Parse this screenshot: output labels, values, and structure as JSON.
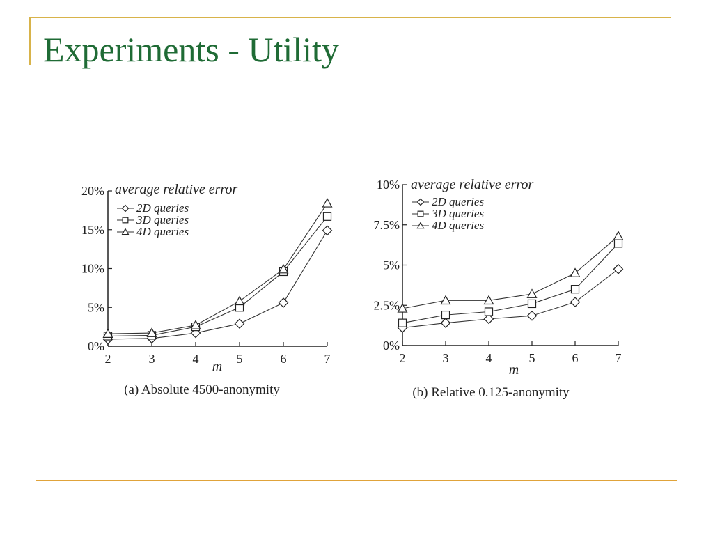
{
  "slide": {
    "title": "Experiments - Utility"
  },
  "chart_data": [
    {
      "type": "line",
      "title": "average relative error",
      "caption": "(a) Absolute 4500-anonymity",
      "xlabel": "m",
      "ylabel": "",
      "x": [
        2,
        3,
        4,
        5,
        6,
        7
      ],
      "xlim": [
        2,
        7
      ],
      "ylim": [
        0,
        20
      ],
      "yticks": [
        0,
        5,
        10,
        15,
        20
      ],
      "ytick_labels": [
        "0%",
        "5%",
        "10%",
        "15%",
        "20%"
      ],
      "xtick_labels": [
        "2",
        "3",
        "4",
        "5",
        "6",
        "7"
      ],
      "grid": false,
      "legend_placement": "top-left",
      "series": [
        {
          "name": "2D queries",
          "marker": "diamond",
          "values": [
            0.9,
            1.0,
            1.7,
            2.9,
            5.6,
            14.9
          ]
        },
        {
          "name": "3D queries",
          "marker": "square",
          "values": [
            1.3,
            1.4,
            2.5,
            5.0,
            9.6,
            16.7
          ]
        },
        {
          "name": "4D queries",
          "marker": "triangle",
          "values": [
            1.6,
            1.7,
            2.7,
            5.8,
            9.9,
            18.4
          ]
        }
      ]
    },
    {
      "type": "line",
      "title": "average relative error",
      "caption": "(b) Relative 0.125-anonymity",
      "xlabel": "m",
      "ylabel": "",
      "x": [
        2,
        3,
        4,
        5,
        6,
        7
      ],
      "xlim": [
        2,
        7
      ],
      "ylim": [
        0,
        10
      ],
      "yticks": [
        0,
        2.5,
        5,
        7.5,
        10
      ],
      "ytick_labels": [
        "0%",
        "2.5%",
        "5%",
        "7.5%",
        "10%"
      ],
      "xtick_labels": [
        "2",
        "3",
        "4",
        "5",
        "6",
        "7"
      ],
      "grid": false,
      "legend_placement": "top-left",
      "series": [
        {
          "name": "2D queries",
          "marker": "diamond",
          "values": [
            1.1,
            1.4,
            1.65,
            1.85,
            2.7,
            4.75
          ]
        },
        {
          "name": "3D queries",
          "marker": "square",
          "values": [
            1.4,
            1.9,
            2.1,
            2.6,
            3.5,
            6.35
          ]
        },
        {
          "name": "4D queries",
          "marker": "triangle",
          "values": [
            2.3,
            2.8,
            2.8,
            3.2,
            4.5,
            6.8
          ]
        }
      ]
    }
  ]
}
